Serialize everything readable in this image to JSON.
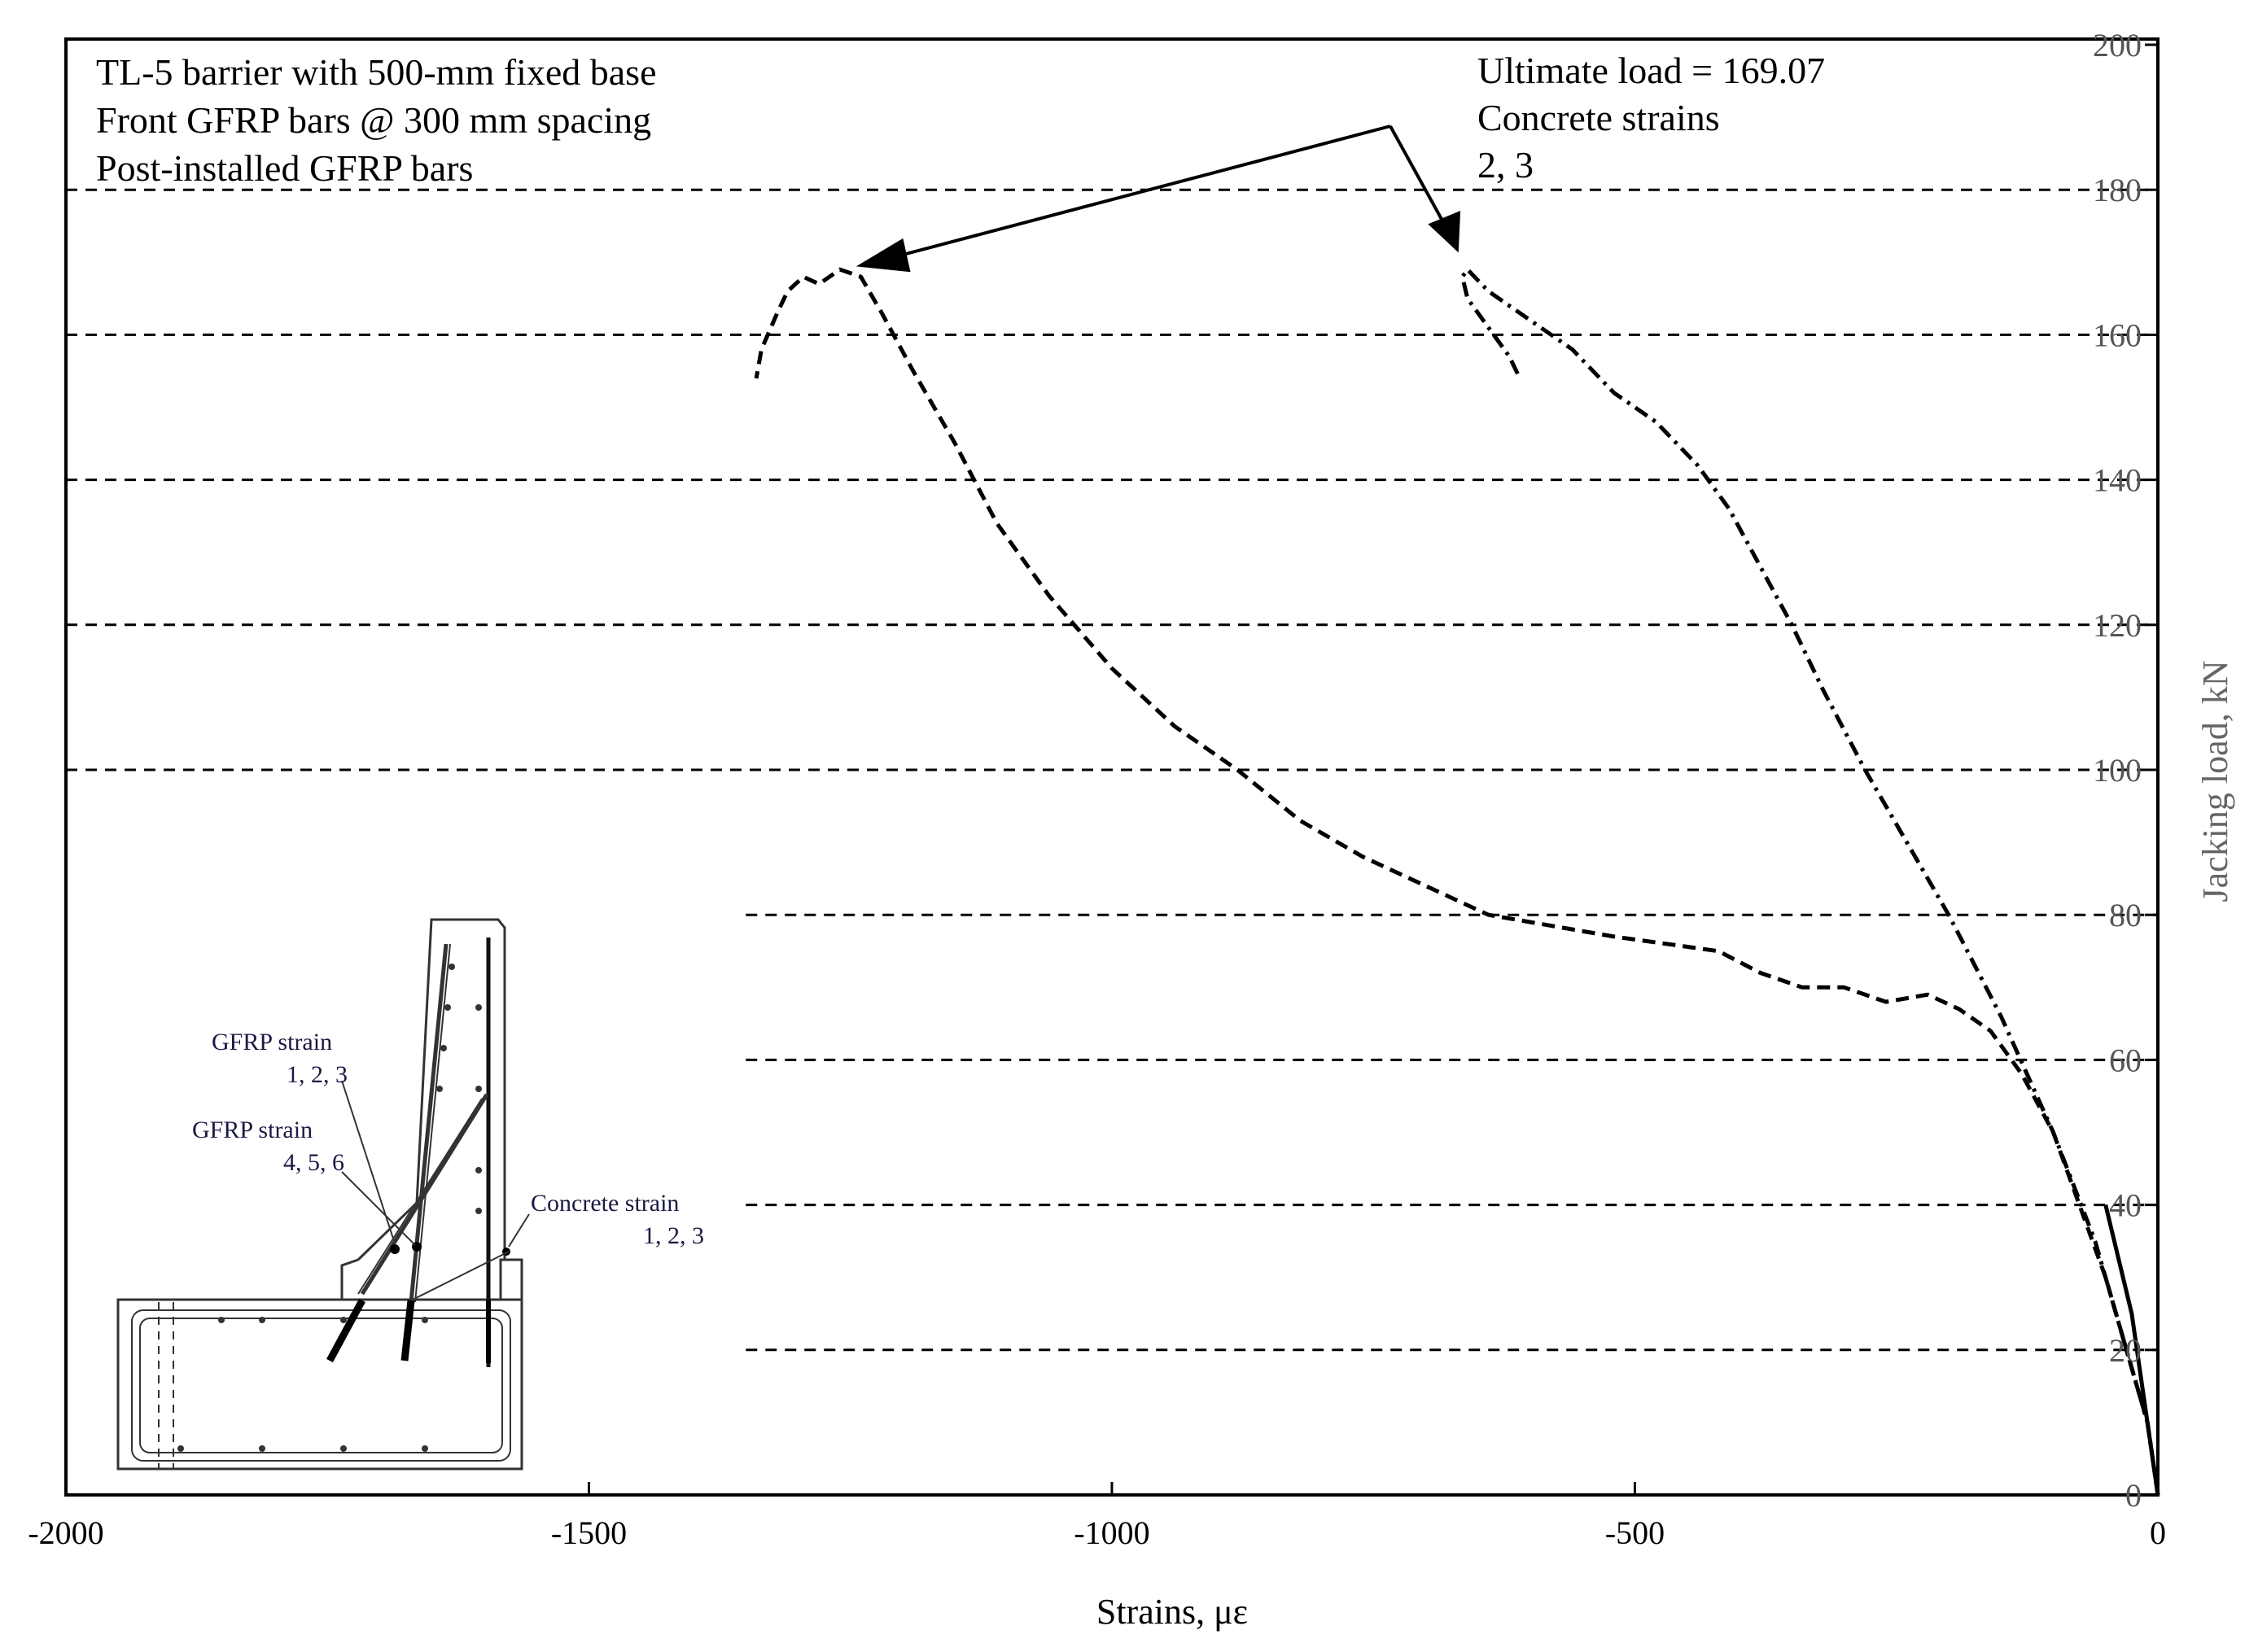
{
  "chart_data": {
    "type": "line",
    "title": "",
    "xlabel": "Strains, με",
    "ylabel": "Jacking load, kN",
    "xlim": [
      -2000,
      0
    ],
    "ylim": [
      0,
      200
    ],
    "x_ticks": [
      -2000,
      -1500,
      -1000,
      -500,
      0
    ],
    "y_ticks": [
      0,
      20,
      40,
      60,
      80,
      100,
      120,
      140,
      160,
      180,
      200
    ],
    "grid": "horizontal dashed",
    "notes": [
      "TL-5 barrier with 500-mm fixed base",
      "Front GFRP bars @ 300 mm spacing",
      "Post-installed GFRP bars"
    ],
    "annotation": [
      "Ultimate load = 169.07",
      "Concrete strains",
      "2, 3"
    ],
    "series": [
      {
        "line_style": "dashed",
        "x": [
          0,
          -10,
          -30,
          -50,
          -75,
          -100,
          -130,
          -160,
          -190,
          -220,
          -260,
          -300,
          -340,
          -380,
          -420,
          -470,
          -520,
          -560,
          -600,
          -640,
          -700,
          -760,
          -820,
          -880,
          -940,
          -1000,
          -1060,
          -1110,
          -1150,
          -1190,
          -1220,
          -1240,
          -1260,
          -1270,
          -1280,
          -1295,
          -1310,
          -1320,
          -1335,
          -1340
        ],
        "y": [
          0,
          10,
          20,
          30,
          40,
          50,
          58,
          64,
          67,
          69,
          68,
          70,
          70,
          72,
          75,
          76,
          77,
          78,
          79,
          80,
          84,
          88,
          93,
          100,
          106,
          114,
          124,
          134,
          145,
          155,
          163,
          168,
          169,
          168,
          167,
          168,
          166,
          163,
          158,
          154
        ]
      },
      {
        "line_style": "dash-dot",
        "x": [
          0,
          -10,
          -30,
          -60,
          -100,
          -150,
          -200,
          -240,
          -280,
          -320,
          -350,
          -380,
          -410,
          -440,
          -480,
          -520,
          -560,
          -600,
          -620,
          -640,
          -660,
          -665,
          -660,
          -640,
          -620,
          -610
        ],
        "y": [
          0,
          10,
          20,
          35,
          50,
          66,
          80,
          90,
          100,
          111,
          120,
          128,
          136,
          142,
          148,
          152,
          158,
          162,
          164,
          166,
          169,
          168,
          165,
          161,
          157,
          154
        ]
      }
    ]
  },
  "inset": {
    "gfrp_1": "GFRP strain",
    "gfrp_1_nums": "1, 2, 3",
    "gfrp_2": "GFRP strain",
    "gfrp_2_nums": "4, 5, 6",
    "concrete": "Concrete  strain",
    "concrete_nums": "1, 2, 3"
  }
}
